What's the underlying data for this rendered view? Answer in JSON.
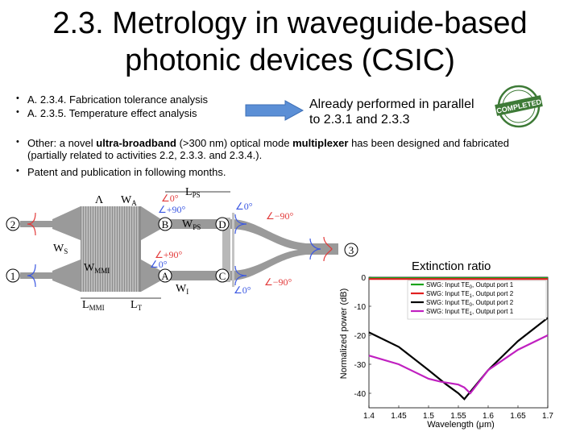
{
  "slide": {
    "title_line1": "2.3. Metrology in waveguide-based",
    "title_line2": "photonic devices (CSIC)",
    "bullets": [
      {
        "bullet": "•",
        "text": "A. 2.3.4. Fabrication tolerance analysis"
      },
      {
        "bullet": "•",
        "text": "A. 2.3.5. Temperature effect analysis"
      },
      {
        "bullet": "•",
        "pre": "Other: a novel ",
        "b1": "ultra-broadband",
        "mid": " (>300 nm) optical mode ",
        "b2": "multiplexer",
        "post": " has been designed and fabricated",
        "line2": "(partially related to activities 2.2, 2.3.3. and 2.3.4.)."
      },
      {
        "bullet": "•",
        "text": "Patent and publication in following months."
      }
    ],
    "already_line1": "Already performed in parallel",
    "already_line2": "to 2.3.1 and 2.3.3",
    "stamp_text": "COMPLETED",
    "extinction_label": "Extinction ratio"
  },
  "colors": {
    "arrow_fill": "#5b8fd6",
    "stamp_green": "#3d7a36",
    "waveguide": "#9a9a9a",
    "angle_red": "#e23a3a",
    "angle_blue": "#3a57e2"
  },
  "diagram": {
    "port_1": "1",
    "port_2": "2",
    "port_3": "3",
    "node_A": "A",
    "node_B": "B",
    "node_C": "C",
    "node_D": "D",
    "label_lambda": "Λ",
    "label_WA": "W",
    "label_WA_sub": "A",
    "label_LPS": "L",
    "label_LPS_sub": "PS",
    "label_WPS": "W",
    "label_WPS_sub": "PS",
    "label_WS": "W",
    "label_WS_sub": "S",
    "label_WMMI": "W",
    "label_WMMI_sub": "MMI",
    "label_WI": "W",
    "label_WI_sub": "I",
    "label_LMMI": "L",
    "label_LMMI_sub": "MMI",
    "label_LT": "L",
    "label_LT_sub": "T",
    "angle_0": "∠0°",
    "angle_p90": "∠+90°",
    "angle_m90": "∠−90°"
  },
  "chart_data": {
    "type": "line",
    "title": "",
    "xlabel": "Wavelength (μm)",
    "ylabel": "Normalized power (dB)",
    "xlim": [
      1.4,
      1.7
    ],
    "ylim": [
      -45,
      0
    ],
    "xticks": [
      "1.4",
      "1.45",
      "1.5",
      "1.55",
      "1.6",
      "1.65",
      "1.7"
    ],
    "yticks": [
      "0",
      "-10",
      "-20",
      "-30",
      "-40"
    ],
    "legend_position": "top",
    "series": [
      {
        "name": "SWG: Input TE0, Output port 1",
        "legend_main": "SWG: Input TE",
        "legend_sub": "0",
        "legend_tail": ", Output port 1",
        "color": "#1aa31a",
        "x": [
          1.4,
          1.7
        ],
        "y": [
          -0.3,
          -0.3
        ]
      },
      {
        "name": "SWG: Input TE1, Output port 2",
        "legend_main": "SWG: Input TE",
        "legend_sub": "1",
        "legend_tail": ", Output port 2",
        "color": "#e02020",
        "x": [
          1.4,
          1.7
        ],
        "y": [
          -0.6,
          -0.6
        ]
      },
      {
        "name": "SWG: Input TE0, Output port 2",
        "legend_main": "SWG: Input TE",
        "legend_sub": "0",
        "legend_tail": ", Output port 2",
        "color": "#000000",
        "x": [
          1.4,
          1.45,
          1.5,
          1.53,
          1.55,
          1.56,
          1.6,
          1.65,
          1.7
        ],
        "y": [
          -19,
          -24,
          -32,
          -37,
          -40,
          -42,
          -32,
          -22,
          -14
        ]
      },
      {
        "name": "SWG: Input TE1, Output port 1",
        "legend_main": "SWG: Input TE",
        "legend_sub": "1",
        "legend_tail": ", Output port 1",
        "color": "#c020c0",
        "x": [
          1.4,
          1.45,
          1.5,
          1.52,
          1.55,
          1.56,
          1.57,
          1.6,
          1.65,
          1.7
        ],
        "y": [
          -27,
          -30,
          -35,
          -36,
          -37,
          -38,
          -40,
          -32,
          -25,
          -20
        ]
      }
    ]
  }
}
